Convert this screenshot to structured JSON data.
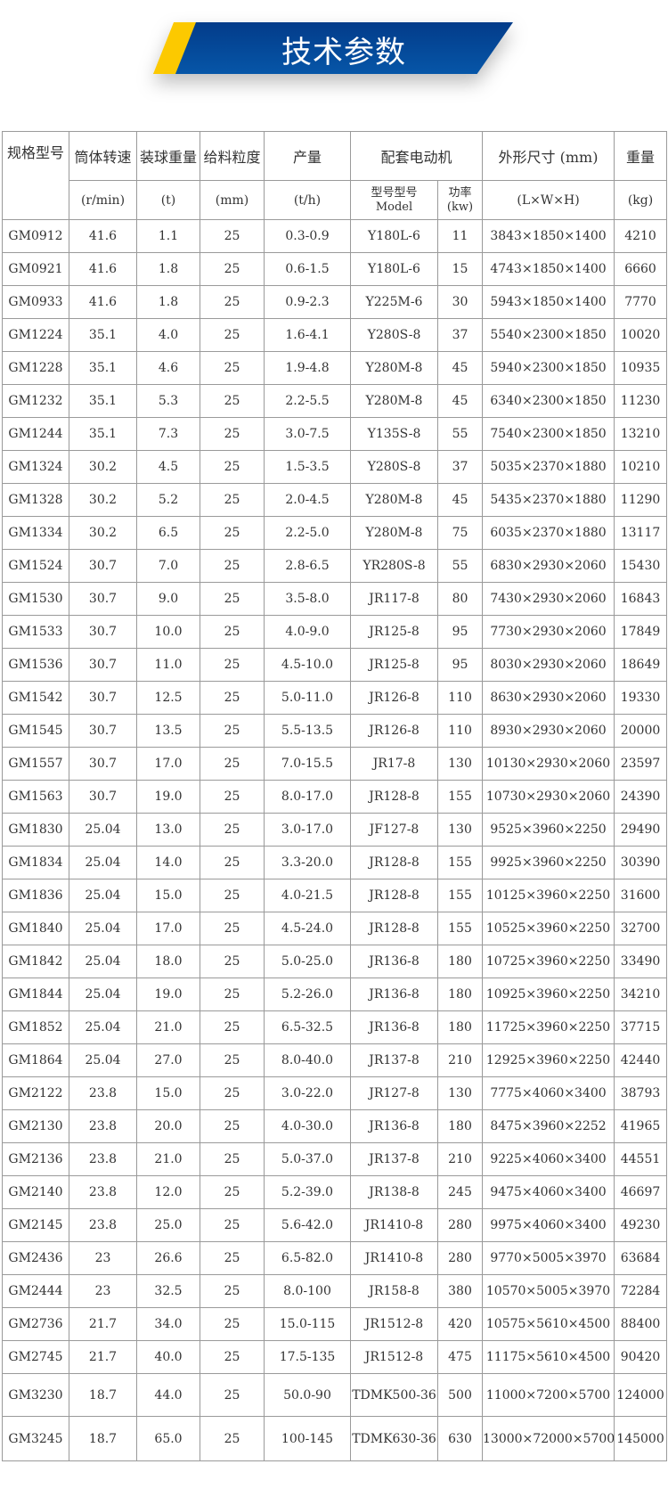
{
  "banner": {
    "title": "技术参数",
    "colors": {
      "blue": "#0656a8",
      "yellow": "#fcc900"
    }
  },
  "table": {
    "headers": {
      "spec": "规格型号",
      "speed": "筒体转速",
      "ball": "装球重量",
      "feed": "给料粒度",
      "output": "产量",
      "motor": "配套电动机",
      "size": "外形尺寸 (mm)",
      "weight": "重量"
    },
    "units": {
      "speed": "(r/min)",
      "ball": "(t)",
      "feed": "(mm)",
      "output": "(t/h)",
      "motor_model": "型号型号",
      "motor_model2": "Model",
      "power": "功率",
      "power_unit": "(kw)",
      "size": "(L×W×H)",
      "weight": "(kg)"
    },
    "rows": [
      [
        "GM0912",
        "41.6",
        "1.1",
        "25",
        "0.3-0.9",
        "Y180L-6",
        "11",
        "3843×1850×1400",
        "4210"
      ],
      [
        "GM0921",
        "41.6",
        "1.8",
        "25",
        "0.6-1.5",
        "Y180L-6",
        "15",
        "4743×1850×1400",
        "6660"
      ],
      [
        "GM0933",
        "41.6",
        "1.8",
        "25",
        "0.9-2.3",
        "Y225M-6",
        "30",
        "5943×1850×1400",
        "7770"
      ],
      [
        "GM1224",
        "35.1",
        "4.0",
        "25",
        "1.6-4.1",
        "Y280S-8",
        "37",
        "5540×2300×1850",
        "10020"
      ],
      [
        "GM1228",
        "35.1",
        "4.6",
        "25",
        "1.9-4.8",
        "Y280M-8",
        "45",
        "5940×2300×1850",
        "10935"
      ],
      [
        "GM1232",
        "35.1",
        "5.3",
        "25",
        "2.2-5.5",
        "Y280M-8",
        "45",
        "6340×2300×1850",
        "11230"
      ],
      [
        "GM1244",
        "35.1",
        "7.3",
        "25",
        "3.0-7.5",
        "Y135S-8",
        "55",
        "7540×2300×1850",
        "13210"
      ],
      [
        "GM1324",
        "30.2",
        "4.5",
        "25",
        "1.5-3.5",
        "Y280S-8",
        "37",
        "5035×2370×1880",
        "10210"
      ],
      [
        "GM1328",
        "30.2",
        "5.2",
        "25",
        "2.0-4.5",
        "Y280M-8",
        "45",
        "5435×2370×1880",
        "11290"
      ],
      [
        "GM1334",
        "30.2",
        "6.5",
        "25",
        "2.2-5.0",
        "Y280M-8",
        "75",
        "6035×2370×1880",
        "13117"
      ],
      [
        "GM1524",
        "30.7",
        "7.0",
        "25",
        "2.8-6.5",
        "YR280S-8",
        "55",
        "6830×2930×2060",
        "15430"
      ],
      [
        "GM1530",
        "30.7",
        "9.0",
        "25",
        "3.5-8.0",
        "JR117-8",
        "80",
        "7430×2930×2060",
        "16843"
      ],
      [
        "GM1533",
        "30.7",
        "10.0",
        "25",
        "4.0-9.0",
        "JR125-8",
        "95",
        "7730×2930×2060",
        "17849"
      ],
      [
        "GM1536",
        "30.7",
        "11.0",
        "25",
        "4.5-10.0",
        "JR125-8",
        "95",
        "8030×2930×2060",
        "18649"
      ],
      [
        "GM1542",
        "30.7",
        "12.5",
        "25",
        "5.0-11.0",
        "JR126-8",
        "110",
        "8630×2930×2060",
        "19330"
      ],
      [
        "GM1545",
        "30.7",
        "13.5",
        "25",
        "5.5-13.5",
        "JR126-8",
        "110",
        "8930×2930×2060",
        "20000"
      ],
      [
        "GM1557",
        "30.7",
        "17.0",
        "25",
        "7.0-15.5",
        "JR17-8",
        "130",
        "10130×2930×2060",
        "23597"
      ],
      [
        "GM1563",
        "30.7",
        "19.0",
        "25",
        "8.0-17.0",
        "JR128-8",
        "155",
        "10730×2930×2060",
        "24390"
      ],
      [
        "GM1830",
        "25.04",
        "13.0",
        "25",
        "3.0-17.0",
        "JF127-8",
        "130",
        "9525×3960×2250",
        "29490"
      ],
      [
        "GM1834",
        "25.04",
        "14.0",
        "25",
        "3.3-20.0",
        "JR128-8",
        "155",
        "9925×3960×2250",
        "30390"
      ],
      [
        "GM1836",
        "25.04",
        "15.0",
        "25",
        "4.0-21.5",
        "JR128-8",
        "155",
        "10125×3960×2250",
        "31600"
      ],
      [
        "GM1840",
        "25.04",
        "17.0",
        "25",
        "4.5-24.0",
        "JR128-8",
        "155",
        "10525×3960×2250",
        "32700"
      ],
      [
        "GM1842",
        "25.04",
        "18.0",
        "25",
        "5.0-25.0",
        "JR136-8",
        "180",
        "10725×3960×2250",
        "33490"
      ],
      [
        "GM1844",
        "25.04",
        "19.0",
        "25",
        "5.2-26.0",
        "JR136-8",
        "180",
        "10925×3960×2250",
        "34210"
      ],
      [
        "GM1852",
        "25.04",
        "21.0",
        "25",
        "6.5-32.5",
        "JR136-8",
        "180",
        "11725×3960×2250",
        "37715"
      ],
      [
        "GM1864",
        "25.04",
        "27.0",
        "25",
        "8.0-40.0",
        "JR137-8",
        "210",
        "12925×3960×2250",
        "42440"
      ],
      [
        "GM2122",
        "23.8",
        "15.0",
        "25",
        "3.0-22.0",
        "JR127-8",
        "130",
        "7775×4060×3400",
        "38793"
      ],
      [
        "GM2130",
        "23.8",
        "20.0",
        "25",
        "4.0-30.0",
        "JR136-8",
        "180",
        "8475×3960×2252",
        "41965"
      ],
      [
        "GM2136",
        "23.8",
        "21.0",
        "25",
        "5.0-37.0",
        "JR137-8",
        "210",
        "9225×4060×3400",
        "44551"
      ],
      [
        "GM2140",
        "23.8",
        "12.0",
        "25",
        "5.2-39.0",
        "JR138-8",
        "245",
        "9475×4060×3400",
        "46697"
      ],
      [
        "GM2145",
        "23.8",
        "25.0",
        "25",
        "5.6-42.0",
        "JR1410-8",
        "280",
        "9975×4060×3400",
        "49230"
      ],
      [
        "GM2436",
        "23",
        "26.6",
        "25",
        "6.5-82.0",
        "JR1410-8",
        "280",
        "9770×5005×3970",
        "63684"
      ],
      [
        "GM2444",
        "23",
        "32.5",
        "25",
        "8.0-100",
        "JR158-8",
        "380",
        "10570×5005×3970",
        "72284"
      ],
      [
        "GM2736",
        "21.7",
        "34.0",
        "25",
        "15.0-115",
        "JR1512-8",
        "420",
        "10575×5610×4500",
        "88400"
      ],
      [
        "GM2745",
        "21.7",
        "40.0",
        "25",
        "17.5-135",
        "JR1512-8",
        "475",
        "11175×5610×4500",
        "90420"
      ],
      [
        "GM3230",
        "18.7",
        "44.0",
        "25",
        "50.0-90",
        "TDMK500-36",
        "500",
        "11000×7200×5700",
        "124000"
      ],
      [
        "GM3245",
        "18.7",
        "65.0",
        "25",
        "100-145",
        "TDMK630-36",
        "630",
        "13000×72000×5700",
        "145000"
      ]
    ]
  }
}
